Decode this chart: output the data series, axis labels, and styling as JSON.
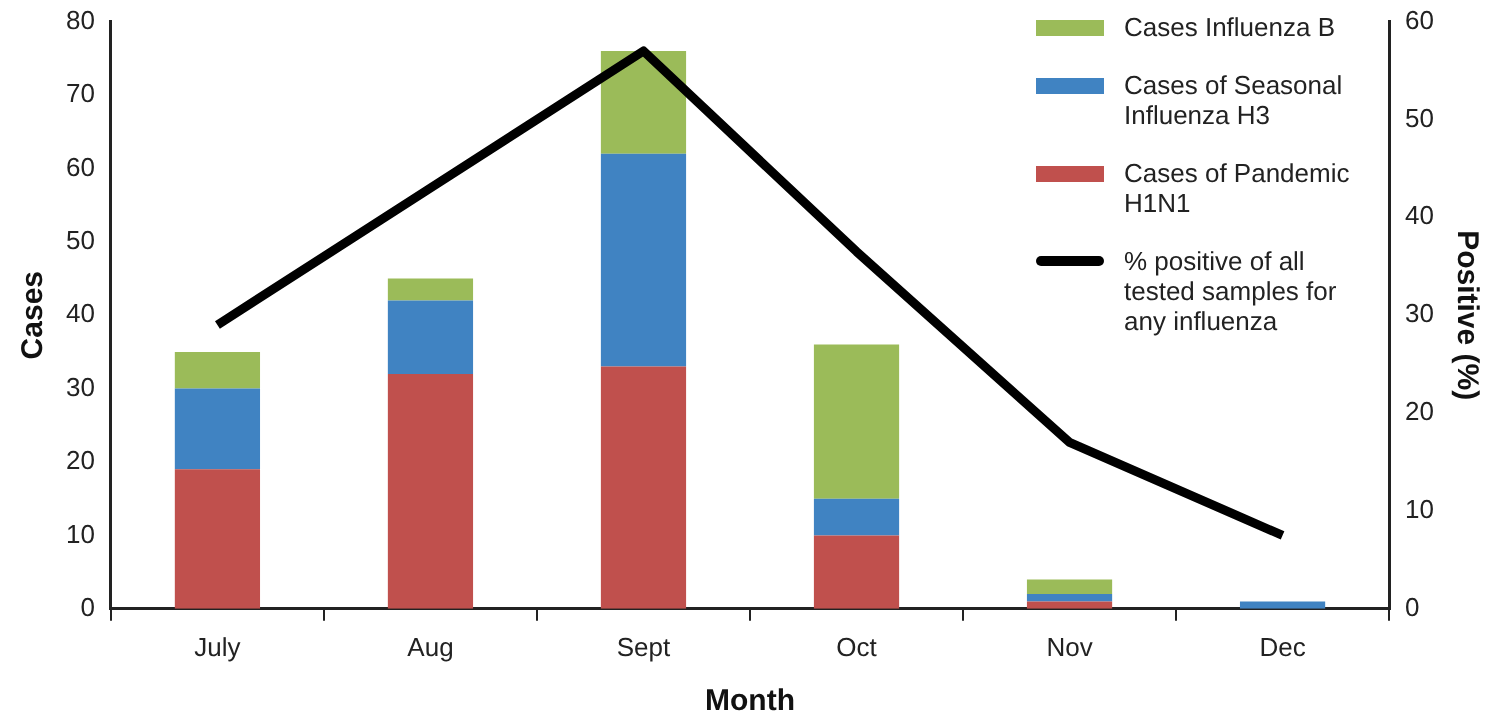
{
  "chart_data": {
    "type": "bar",
    "stacked": true,
    "xlabel": "Month",
    "ylabel": "Cases",
    "y2label": "Positive (%)",
    "categories": [
      "July",
      "Aug",
      "Sept",
      "Oct",
      "Nov",
      "Dec"
    ],
    "series": [
      {
        "name": "Cases of Pandemic H1N1",
        "color": "#c0504d",
        "values": [
          19,
          32,
          33,
          10,
          1,
          0
        ]
      },
      {
        "name": "Cases of Seasonal Influenza H3",
        "color": "#4083c2",
        "values": [
          11,
          10,
          29,
          5,
          1,
          1
        ]
      },
      {
        "name": "Cases Influenza B",
        "color": "#9bbb59",
        "values": [
          5,
          3,
          14,
          21,
          2,
          0
        ]
      },
      {
        "name": "% positive of all tested samples for any influenza",
        "type": "line",
        "axis": "y2",
        "color": "#000000",
        "values": [
          29,
          43,
          57,
          36.5,
          17,
          7.5
        ]
      }
    ],
    "ylim": [
      0,
      80
    ],
    "yticks": [
      0,
      10,
      20,
      30,
      40,
      50,
      60,
      70,
      80
    ],
    "y2lim": [
      0,
      60
    ],
    "y2ticks": [
      0,
      10,
      20,
      30,
      40,
      50,
      60
    ],
    "grid": false,
    "legend": "top right",
    "marker": "none"
  }
}
